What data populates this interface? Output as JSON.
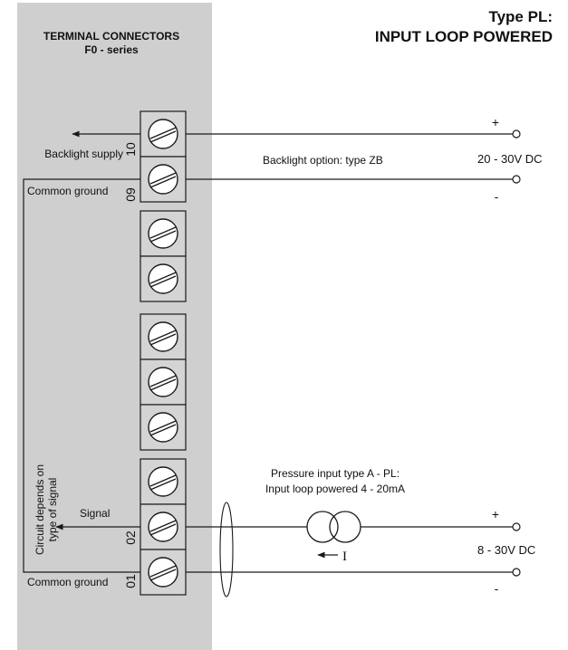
{
  "panel": {
    "title_line1": "TERMINAL CONNECTORS",
    "title_line2": "F0 - series"
  },
  "heading": {
    "line1": "Type PL:",
    "line2": "INPUT LOOP POWERED"
  },
  "terminals": {
    "t10": "10",
    "t09": "09",
    "t02": "02",
    "t01": "01"
  },
  "labels": {
    "backlight_supply": "Backlight  supply",
    "common_ground_top": "Common ground",
    "backlight_option": "Backlight option: type ZB",
    "backlight_voltage": "20 - 30V DC",
    "plus_top": "+",
    "minus_top": "-",
    "circuit_line1": "Circuit depends on",
    "circuit_line2": "type of signal",
    "signal": "Signal",
    "pressure_line1": "Pressure input type A - PL:",
    "pressure_line2": "Input loop powered 4 - 20mA",
    "current_symbol": "I",
    "input_voltage": "8 - 30V DC",
    "plus_bottom": "+",
    "minus_bottom": "-",
    "common_ground_bottom": "Common ground"
  },
  "colors": {
    "panel_gray": "#cfcfcf",
    "block_gray": "#d4d4d4",
    "line": "#1a1a1a"
  }
}
